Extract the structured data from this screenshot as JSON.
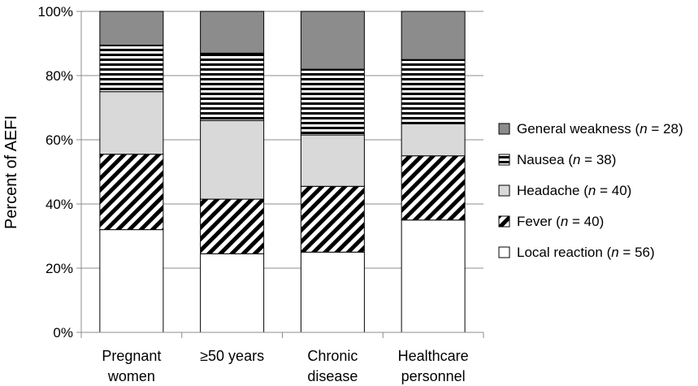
{
  "chart_data": {
    "type": "bar",
    "stacked": true,
    "ylabel": "Percent of AEFI",
    "ylim": [
      0,
      100
    ],
    "yticks": [
      "0%",
      "20%",
      "40%",
      "60%",
      "80%",
      "100%"
    ],
    "grid": true,
    "legend_position": "right",
    "categories": [
      [
        "Pregnant",
        "women"
      ],
      [
        "≥50 years"
      ],
      [
        "Chronic",
        "disease"
      ],
      [
        "Healthcare",
        "personnel"
      ]
    ],
    "series": [
      {
        "name": "Local reaction",
        "n": "56",
        "pattern": "white",
        "values": [
          32,
          24.5,
          25,
          35
        ]
      },
      {
        "name": "Fever",
        "n": "40",
        "pattern": "diagonal",
        "values": [
          23.5,
          17,
          20.5,
          20
        ]
      },
      {
        "name": "Headache",
        "n": "40",
        "pattern": "lightgray",
        "values": [
          19.5,
          24.5,
          16,
          10
        ]
      },
      {
        "name": "Nausea",
        "n": "38",
        "pattern": "horizontal",
        "values": [
          14.5,
          21,
          20.5,
          20
        ]
      },
      {
        "name": "General weakness",
        "n": "28",
        "pattern": "darkgray",
        "values": [
          10.5,
          13,
          18,
          15
        ]
      }
    ]
  }
}
